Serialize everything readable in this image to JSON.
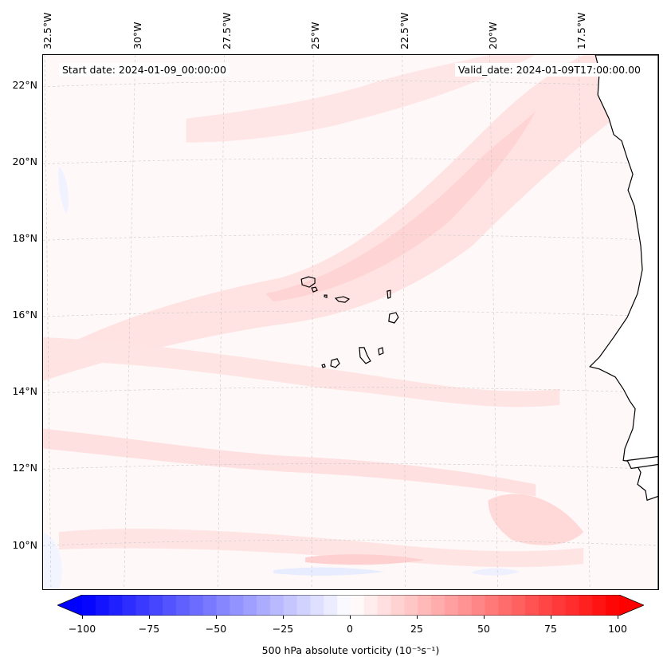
{
  "header": {
    "start_date": "Start date: 2024-01-09_00:00:00",
    "valid_date": "Valid_date: 2024-01-09T17:00:00.00"
  },
  "axes": {
    "longitude_labels": [
      "32.5°W",
      "30°W",
      "27.5°W",
      "25°W",
      "22.5°W",
      "20°W",
      "17.5°W"
    ],
    "latitude_labels": [
      "22°N",
      "20°N",
      "18°N",
      "16°N",
      "14°N",
      "12°N",
      "10°N"
    ],
    "lon_range": [
      -33.0,
      -16.0
    ],
    "lat_range": [
      8.9,
      22.8
    ],
    "grid": true
  },
  "colorbar": {
    "ticks": [
      "−100",
      "−75",
      "−50",
      "−25",
      "0",
      "25",
      "50",
      "75",
      "100"
    ],
    "range": [
      -100,
      100
    ],
    "label": "500 hPa absolute vorticity (10⁻⁵s⁻¹)",
    "colormap": "bwr",
    "color_min": "#0000ff",
    "color_mid": "#ffffff",
    "color_max": "#ff0000"
  },
  "map": {
    "field": "500 hPa absolute vorticity",
    "features": [
      "coastline-west-africa",
      "cape-verde-islands"
    ],
    "colors": {
      "background": "#fff8f8",
      "positive_band": "#ffdede",
      "strong_positive_band": "#ffcccc",
      "negative_patch": "#eef0ff",
      "coastline": "#000000",
      "grid": "#c8c8c8"
    }
  }
}
